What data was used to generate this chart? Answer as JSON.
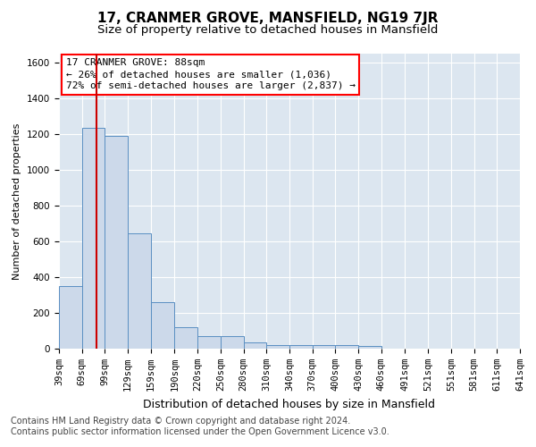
{
  "title": "17, CRANMER GROVE, MANSFIELD, NG19 7JR",
  "subtitle": "Size of property relative to detached houses in Mansfield",
  "xlabel": "Distribution of detached houses by size in Mansfield",
  "ylabel": "Number of detached properties",
  "footer_line1": "Contains HM Land Registry data © Crown copyright and database right 2024.",
  "footer_line2": "Contains public sector information licensed under the Open Government Licence v3.0.",
  "annotation_line1": "17 CRANMER GROVE: 88sqm",
  "annotation_line2": "← 26% of detached houses are smaller (1,036)",
  "annotation_line3": "72% of semi-detached houses are larger (2,837) →",
  "bar_edges": [
    39,
    69,
    99,
    129,
    159,
    190,
    220,
    250,
    280,
    310,
    340,
    370,
    400,
    430,
    460,
    491,
    521,
    551,
    581,
    611,
    641
  ],
  "bar_heights": [
    350,
    1235,
    1190,
    645,
    260,
    120,
    70,
    70,
    35,
    20,
    20,
    20,
    20,
    15,
    0,
    0,
    0,
    0,
    0,
    0
  ],
  "bar_color": "#ccd9ea",
  "bar_edge_color": "#5a8fc2",
  "vline_x": 88,
  "vline_color": "#cc0000",
  "ylim": [
    0,
    1650
  ],
  "yticks": [
    0,
    200,
    400,
    600,
    800,
    1000,
    1200,
    1400,
    1600
  ],
  "background_color": "#dce6f0",
  "grid_color": "#ffffff",
  "title_fontsize": 11,
  "subtitle_fontsize": 9.5,
  "xlabel_fontsize": 9,
  "ylabel_fontsize": 8,
  "tick_fontsize": 7.5,
  "footer_fontsize": 7,
  "ann_fontsize": 8
}
